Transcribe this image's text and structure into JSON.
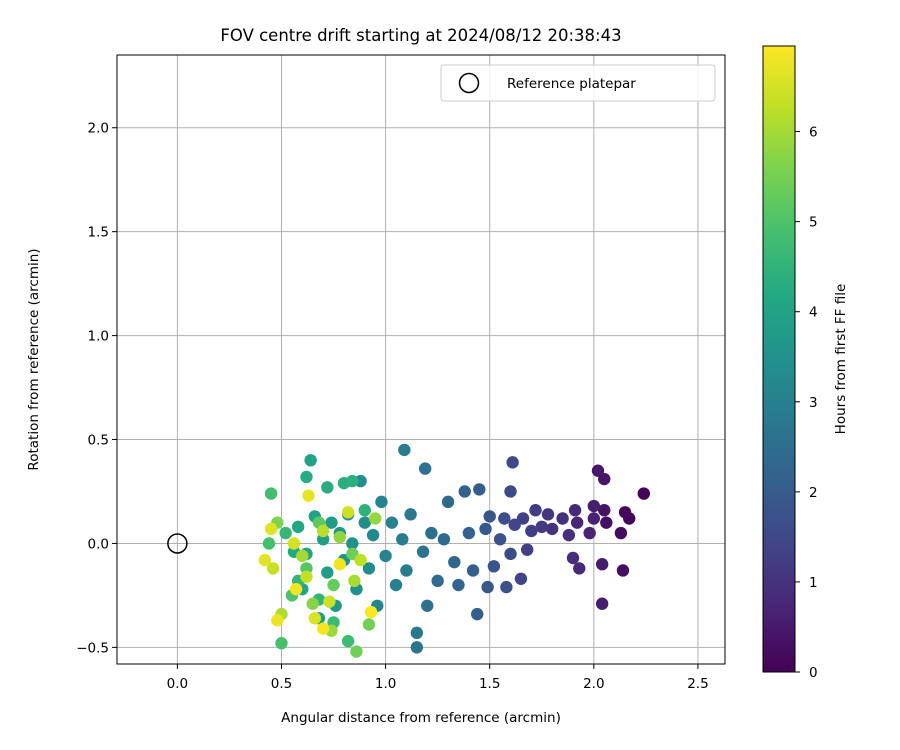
{
  "chart_data": {
    "type": "scatter",
    "title": "FOV centre drift starting at 2024/08/12 20:38:43",
    "xlabel": "Angular distance from reference (arcmin)",
    "ylabel": "Rotation from reference (arcmin)",
    "xlim": [
      -0.29,
      2.63
    ],
    "ylim": [
      -0.58,
      2.35
    ],
    "xticks": [
      0.0,
      0.5,
      1.0,
      1.5,
      2.0,
      2.5
    ],
    "xtick_labels": [
      "0.0",
      "0.5",
      "1.0",
      "1.5",
      "2.0",
      "2.5"
    ],
    "yticks": [
      -0.5,
      0.0,
      0.5,
      1.0,
      1.5,
      2.0
    ],
    "ytick_labels": [
      "−0.5",
      "0.0",
      "0.5",
      "1.0",
      "1.5",
      "2.0"
    ],
    "grid": true,
    "legend": {
      "position": "top-right",
      "entries": [
        {
          "label": "Reference platepar",
          "marker": "open-circle"
        }
      ]
    },
    "reference_point": {
      "x": 0.0,
      "y": 0.0
    },
    "colorbar": {
      "label": "Hours from first FF file",
      "colormap": "viridis",
      "range": [
        0,
        6.95
      ],
      "ticks": [
        0,
        1,
        2,
        3,
        4,
        5,
        6
      ],
      "tick_labels": [
        "0",
        "1",
        "2",
        "3",
        "4",
        "5",
        "6"
      ]
    },
    "series": [
      {
        "columns": [
          "x",
          "y",
          "hours"
        ],
        "points": [
          [
            2.24,
            0.24,
            0.05
          ],
          [
            2.17,
            0.12,
            0.1
          ],
          [
            2.15,
            0.15,
            0.15
          ],
          [
            2.13,
            0.05,
            0.2
          ],
          [
            2.14,
            -0.13,
            0.25
          ],
          [
            2.06,
            0.1,
            0.3
          ],
          [
            2.05,
            0.16,
            0.35
          ],
          [
            2.05,
            0.31,
            0.4
          ],
          [
            2.02,
            0.35,
            0.45
          ],
          [
            2.04,
            -0.1,
            0.5
          ],
          [
            2.04,
            -0.29,
            0.55
          ],
          [
            2.0,
            0.18,
            0.6
          ],
          [
            2.0,
            0.12,
            0.65
          ],
          [
            1.98,
            0.05,
            0.7
          ],
          [
            1.92,
            0.1,
            0.75
          ],
          [
            1.93,
            -0.12,
            0.8
          ],
          [
            1.91,
            0.16,
            0.85
          ],
          [
            1.9,
            -0.07,
            0.9
          ],
          [
            1.88,
            0.04,
            0.95
          ],
          [
            1.85,
            0.12,
            1.0
          ],
          [
            1.8,
            0.07,
            1.05
          ],
          [
            1.78,
            0.14,
            1.1
          ],
          [
            1.75,
            0.08,
            1.15
          ],
          [
            1.72,
            0.16,
            1.2
          ],
          [
            1.7,
            0.06,
            1.25
          ],
          [
            1.68,
            -0.03,
            1.3
          ],
          [
            1.66,
            0.12,
            1.35
          ],
          [
            1.65,
            -0.17,
            1.4
          ],
          [
            1.62,
            0.09,
            1.45
          ],
          [
            1.61,
            0.39,
            1.5
          ],
          [
            1.6,
            0.25,
            1.55
          ],
          [
            1.6,
            -0.05,
            1.6
          ],
          [
            1.57,
            0.12,
            1.65
          ],
          [
            1.58,
            -0.21,
            1.7
          ],
          [
            1.55,
            0.02,
            1.75
          ],
          [
            1.52,
            -0.11,
            1.8
          ],
          [
            1.5,
            0.13,
            1.85
          ],
          [
            1.49,
            -0.21,
            1.9
          ],
          [
            1.48,
            0.07,
            1.95
          ],
          [
            1.45,
            0.26,
            2.0
          ],
          [
            1.44,
            -0.34,
            2.05
          ],
          [
            1.42,
            -0.13,
            2.1
          ],
          [
            1.4,
            0.05,
            2.15
          ],
          [
            1.38,
            0.25,
            2.2
          ],
          [
            1.35,
            -0.2,
            2.25
          ],
          [
            1.33,
            -0.09,
            2.3
          ],
          [
            1.3,
            0.2,
            2.35
          ],
          [
            1.28,
            0.02,
            2.4
          ],
          [
            1.25,
            -0.18,
            2.45
          ],
          [
            1.22,
            0.05,
            2.5
          ],
          [
            1.2,
            -0.3,
            2.55
          ],
          [
            1.19,
            0.36,
            2.6
          ],
          [
            1.18,
            -0.04,
            2.65
          ],
          [
            1.15,
            -0.5,
            2.7
          ],
          [
            1.15,
            -0.43,
            2.75
          ],
          [
            1.12,
            0.14,
            2.8
          ],
          [
            1.1,
            -0.13,
            2.85
          ],
          [
            1.09,
            0.45,
            2.9
          ],
          [
            1.08,
            0.02,
            2.95
          ],
          [
            1.05,
            -0.2,
            3.0
          ],
          [
            1.03,
            0.1,
            3.05
          ],
          [
            1.0,
            -0.06,
            3.1
          ],
          [
            0.98,
            0.2,
            3.15
          ],
          [
            0.96,
            -0.3,
            3.2
          ],
          [
            0.94,
            0.04,
            3.25
          ],
          [
            0.92,
            -0.12,
            3.3
          ],
          [
            0.9,
            0.1,
            3.35
          ],
          [
            0.88,
            0.3,
            3.4
          ],
          [
            0.86,
            -0.22,
            3.45
          ],
          [
            0.84,
            0.0,
            3.5
          ],
          [
            0.82,
            0.14,
            3.55
          ],
          [
            0.8,
            -0.08,
            3.6
          ],
          [
            0.78,
            0.05,
            3.65
          ],
          [
            0.76,
            -0.3,
            3.7
          ],
          [
            0.74,
            0.1,
            3.75
          ],
          [
            0.72,
            -0.14,
            3.8
          ],
          [
            0.7,
            0.02,
            3.85
          ],
          [
            0.68,
            -0.36,
            3.9
          ],
          [
            0.66,
            0.13,
            3.95
          ],
          [
            0.64,
            0.4,
            4.0
          ],
          [
            0.62,
            -0.05,
            4.05
          ],
          [
            0.6,
            -0.22,
            4.1
          ],
          [
            0.58,
            0.08,
            4.15
          ],
          [
            0.56,
            -0.04,
            4.2
          ],
          [
            0.62,
            0.32,
            4.25
          ],
          [
            0.72,
            0.27,
            4.3
          ],
          [
            0.8,
            0.29,
            4.35
          ],
          [
            0.84,
            0.3,
            4.4
          ],
          [
            0.9,
            0.16,
            4.45
          ],
          [
            0.68,
            -0.27,
            4.5
          ],
          [
            0.58,
            -0.18,
            4.55
          ],
          [
            0.52,
            0.05,
            4.6
          ],
          [
            0.75,
            -0.38,
            4.7
          ],
          [
            0.82,
            -0.47,
            4.75
          ],
          [
            0.45,
            0.24,
            4.8
          ],
          [
            0.44,
            0.0,
            4.85
          ],
          [
            0.5,
            -0.48,
            4.9
          ],
          [
            0.55,
            -0.25,
            5.0
          ],
          [
            0.62,
            -0.12,
            5.1
          ],
          [
            0.68,
            0.1,
            5.2
          ],
          [
            0.75,
            -0.2,
            5.3
          ],
          [
            0.84,
            -0.05,
            5.4
          ],
          [
            0.86,
            -0.52,
            5.45
          ],
          [
            0.92,
            -0.39,
            5.5
          ],
          [
            0.48,
            0.1,
            5.6
          ],
          [
            0.65,
            -0.29,
            5.7
          ],
          [
            0.78,
            0.03,
            5.8
          ],
          [
            0.95,
            0.12,
            5.85
          ],
          [
            0.74,
            -0.42,
            5.9
          ],
          [
            0.6,
            -0.06,
            6.0
          ],
          [
            0.85,
            -0.18,
            6.05
          ],
          [
            0.5,
            -0.34,
            6.1
          ],
          [
            0.7,
            0.06,
            6.2
          ],
          [
            0.88,
            -0.08,
            6.25
          ],
          [
            0.62,
            -0.16,
            6.3
          ],
          [
            0.46,
            -0.12,
            6.35
          ],
          [
            0.73,
            -0.28,
            6.4
          ],
          [
            0.82,
            0.15,
            6.45
          ],
          [
            0.56,
            0.0,
            6.5
          ],
          [
            0.66,
            -0.36,
            6.55
          ],
          [
            0.45,
            0.07,
            6.6
          ],
          [
            0.42,
            -0.08,
            6.65
          ],
          [
            0.63,
            0.23,
            6.7
          ],
          [
            0.48,
            -0.37,
            6.75
          ],
          [
            0.78,
            -0.1,
            6.8
          ],
          [
            0.57,
            -0.22,
            6.85
          ],
          [
            0.7,
            -0.41,
            6.9
          ],
          [
            0.93,
            -0.33,
            6.95
          ]
        ]
      }
    ]
  }
}
